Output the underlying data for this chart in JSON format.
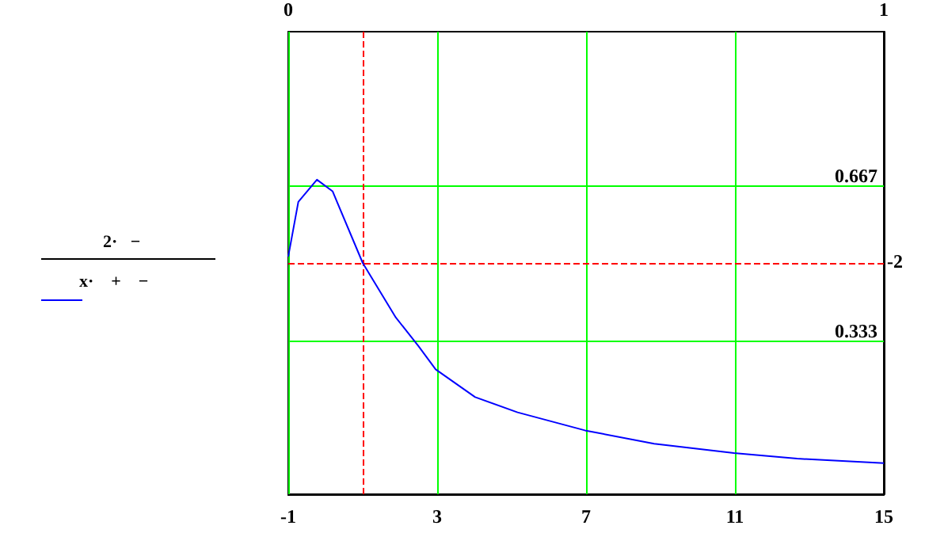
{
  "chart_data": {
    "type": "line",
    "x": [
      -1,
      -0.73,
      -0.23,
      0.19,
      1.0,
      1.89,
      2.5,
      2.96,
      4.02,
      5.16,
      6.97,
      8.83,
      10.97,
      12.67,
      15
    ],
    "series": [
      {
        "color": "#0000ff",
        "values": [
          0.514,
          0.632,
          0.68,
          0.655,
          0.5,
          0.382,
          0.32,
          0.27,
          0.21,
          0.177,
          0.138,
          0.109,
          0.089,
          0.077,
          0.067
        ]
      }
    ],
    "xlim": [
      -1,
      15
    ],
    "xticks": [
      -1,
      3,
      7,
      11,
      15
    ],
    "ylim": [
      0,
      1
    ],
    "yticks": [
      {
        "value": 0.333,
        "label": "0.333"
      },
      {
        "value": 0.667,
        "label": "0.667"
      }
    ],
    "x2lim": [
      0,
      1
    ],
    "x2ticks": [
      0,
      1
    ],
    "grid": true,
    "marker": "none",
    "line_style": "solid",
    "ref_lines": [
      {
        "axis": "x",
        "value": 1,
        "color": "#ff0000",
        "line_style": "dashed"
      },
      {
        "axis": "y",
        "value": 0.5,
        "color": "#ff0000",
        "line_style": "dashed"
      }
    ],
    "annotations": [
      "2·   −",
      "x·    +    −",
      "-2"
    ]
  }
}
